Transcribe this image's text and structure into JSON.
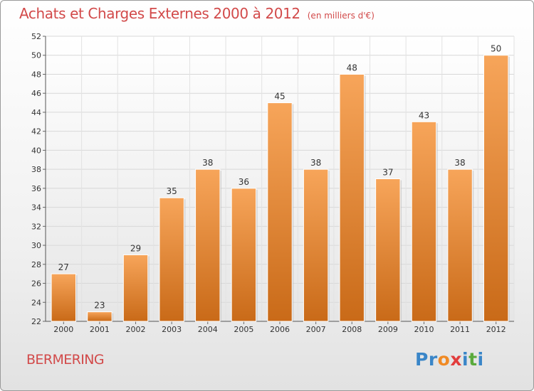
{
  "title": "Achats et Charges Externes 2000 à 2012",
  "subtitle": "(en milliers d'€)",
  "commune": "BERMERING",
  "brand": {
    "letters": [
      "P",
      "r",
      "o",
      "x",
      "i",
      "t",
      "i"
    ],
    "colors": [
      "#3a86c8",
      "#3a86c8",
      "#f08a24",
      "#e23c3c",
      "#3a86c8",
      "#5aaa3c",
      "#3a86c8"
    ]
  },
  "colors": {
    "bar_top": "#f7a55a",
    "bar_bottom": "#c96a18",
    "title": "#d24a4a"
  },
  "chart_data": {
    "type": "bar",
    "title": "Achats et Charges Externes 2000 à 2012",
    "subtitle": "(en milliers d'€)",
    "categories": [
      "2000",
      "2001",
      "2002",
      "2003",
      "2004",
      "2005",
      "2006",
      "2007",
      "2008",
      "2009",
      "2010",
      "2011",
      "2012"
    ],
    "values": [
      27,
      23,
      29,
      35,
      38,
      36,
      45,
      38,
      48,
      37,
      43,
      38,
      50
    ],
    "ylim": [
      22,
      52
    ],
    "yticks": [
      22,
      24,
      26,
      28,
      30,
      32,
      34,
      36,
      38,
      40,
      42,
      44,
      46,
      48,
      50,
      52
    ],
    "xlabel": "",
    "ylabel": "",
    "grid": true,
    "data_labels": true
  }
}
